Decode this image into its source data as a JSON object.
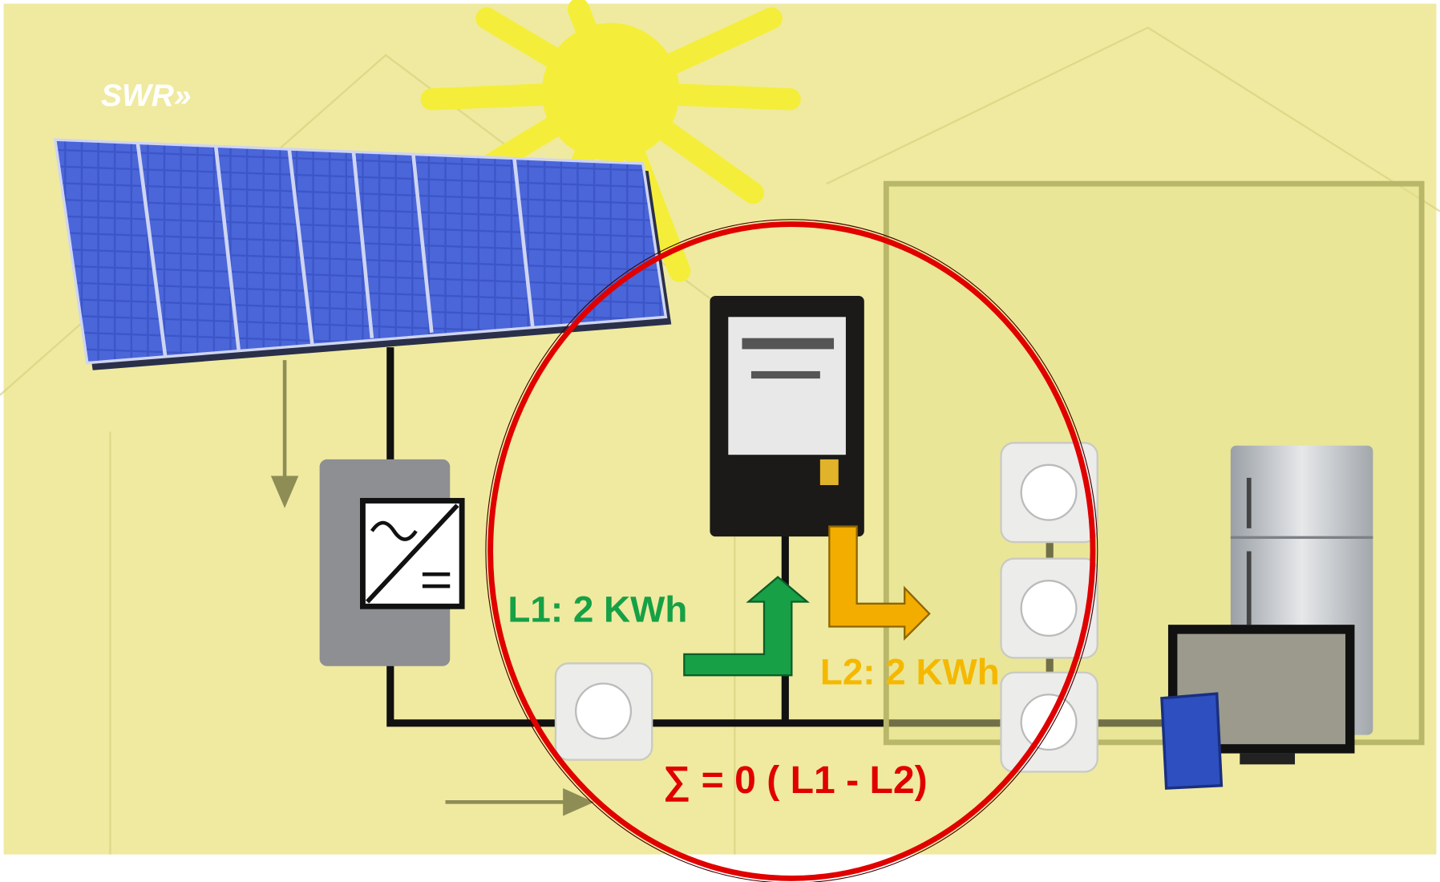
{
  "logo": "SWR»",
  "labels": {
    "l1": "L1: 2 KWh",
    "l2": "L2: 2 KWh",
    "balance": "∑ = 0 ( L1 - L2)"
  }
}
